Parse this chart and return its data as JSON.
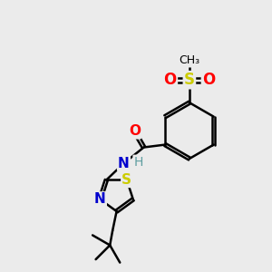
{
  "bg_color": "#ebebeb",
  "bond_color": "#000000",
  "bond_width": 1.8,
  "dbo": 0.055,
  "atom_colors": {
    "C": "#000000",
    "H": "#5f9ea0",
    "N": "#0000cd",
    "O": "#ff0000",
    "S": "#cccc00"
  }
}
